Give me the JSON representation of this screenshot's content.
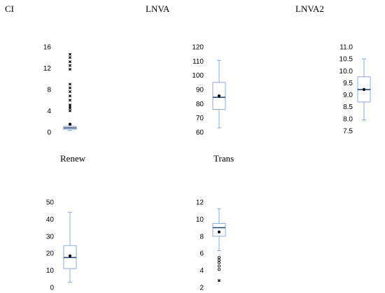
{
  "colors": {
    "box": "#8eaadb",
    "median": "#2f4b7c",
    "marker": "#000000"
  },
  "chart_data": [
    {
      "type": "box",
      "title": "CI",
      "yticks": [
        0,
        4,
        8,
        12,
        16
      ],
      "ylim": [
        0,
        16
      ],
      "box": {
        "whisker_low": 0.3,
        "q1": 0.5,
        "median": 0.8,
        "q3": 1.1,
        "whisker_high": 1.3,
        "mean": 1.5
      },
      "outliers": [
        4.0,
        4.5,
        4.8,
        5.1,
        6.0,
        6.8,
        7.6,
        8.3,
        9.0,
        11.8,
        12.5,
        13.2,
        14.0,
        14.6
      ],
      "outlier_marker": "cross"
    },
    {
      "type": "box",
      "title": "LNVA",
      "yticks": [
        60,
        70,
        80,
        90,
        100,
        110,
        120
      ],
      "ylim": [
        60,
        120
      ],
      "box": {
        "whisker_low": 63,
        "q1": 76,
        "median": 84.5,
        "q3": 95,
        "whisker_high": 110.5,
        "mean": 85.5
      },
      "outliers": []
    },
    {
      "type": "box",
      "title": "LNVA2",
      "yticks": [
        "7.5",
        "8.0",
        "8.5",
        "9.0",
        "9.5",
        "10.0",
        "10.5",
        "11.0"
      ],
      "ylim": [
        7.5,
        11.0
      ],
      "box": {
        "whisker_low": 7.95,
        "q1": 8.7,
        "median": 9.22,
        "q3": 9.75,
        "whisker_high": 10.5,
        "mean": 9.22
      },
      "outliers": []
    },
    {
      "type": "box",
      "title": "Renew",
      "yticks": [
        0,
        10,
        20,
        30,
        40,
        50
      ],
      "ylim": [
        0,
        50
      ],
      "box": {
        "whisker_low": 3,
        "q1": 11,
        "median": 17.5,
        "q3": 24.5,
        "whisker_high": 44,
        "mean": 18.5
      },
      "outliers": []
    },
    {
      "type": "box",
      "title": "Trans",
      "yticks": [
        2,
        4,
        6,
        8,
        10,
        12
      ],
      "ylim": [
        2,
        12
      ],
      "box": {
        "whisker_low": 6.3,
        "q1": 8.0,
        "median": 9.0,
        "q3": 9.5,
        "whisker_high": 11.2,
        "mean": 8.5
      },
      "outliers": [
        4.1,
        4.5,
        4.9,
        5.2,
        5.5
      ],
      "outlier_marker": "circle",
      "extremes": [
        2.8
      ],
      "extreme_marker": "cross"
    }
  ]
}
